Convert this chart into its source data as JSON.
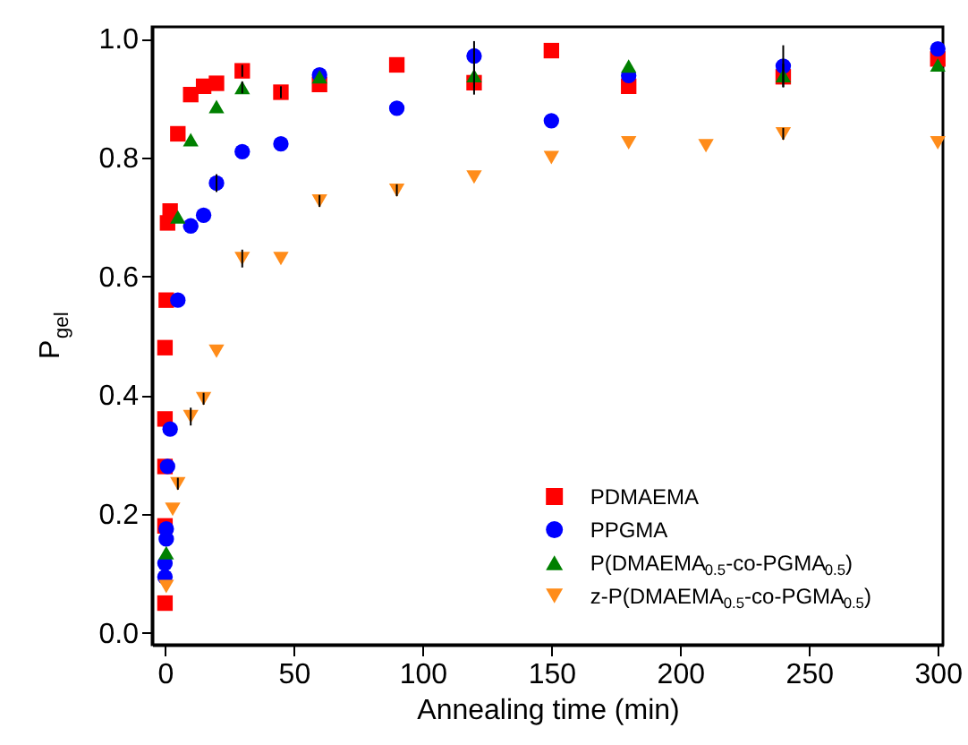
{
  "chart_data": {
    "type": "scatter",
    "xlabel": "Annealing time   (min)",
    "ylabel": "P$_{gel}$",
    "xlim": [
      -5,
      302
    ],
    "ylim": [
      -0.02,
      1.02
    ],
    "xticks": [
      0,
      50,
      100,
      150,
      200,
      250,
      300
    ],
    "yticks": [
      {
        "value": 0,
        "label": "0.0"
      },
      0.2,
      0.4,
      0.6,
      0.8,
      {
        "value": 1,
        "label": "1.0"
      }
    ],
    "legend": "bottom right",
    "grid": false,
    "series": [
      {
        "name": "PDMAEMA",
        "color": "#ff0000",
        "marker": "square",
        "x": [
          0,
          0,
          0,
          0,
          0,
          0.5,
          1,
          2,
          5,
          10,
          15,
          20,
          30,
          45,
          60,
          90,
          120,
          150,
          180,
          240,
          300
        ],
        "values": [
          0.05,
          0.18,
          0.28,
          0.36,
          0.48,
          0.56,
          0.69,
          0.71,
          0.84,
          0.906,
          0.92,
          0.925,
          0.946,
          0.91,
          0.923,
          0.956,
          0.926,
          0.98,
          0.92,
          0.936,
          0.966
        ],
        "errors": [
          null,
          null,
          null,
          null,
          null,
          null,
          null,
          null,
          null,
          null,
          null,
          null,
          0.01,
          0.01,
          null,
          null,
          0.02,
          null,
          null,
          null,
          null
        ]
      },
      {
        "name": "PPGMA",
        "color": "#0000ff",
        "marker": "circle",
        "x": [
          0,
          0,
          0.5,
          0.5,
          1,
          2,
          5,
          10,
          15,
          20,
          30,
          45,
          60,
          90,
          120,
          150,
          180,
          240,
          300
        ],
        "values": [
          0.094,
          0.117,
          0.158,
          0.175,
          0.28,
          0.343,
          0.56,
          0.685,
          0.703,
          0.757,
          0.81,
          0.823,
          0.939,
          0.883,
          0.971,
          0.862,
          0.938,
          0.954,
          0.983
        ],
        "errors": [
          null,
          null,
          null,
          null,
          null,
          null,
          null,
          null,
          null,
          0.015,
          null,
          null,
          null,
          null,
          0.025,
          null,
          null,
          0.035,
          null
        ]
      },
      {
        "name": "P(DMAEMA$_{0.5}$-co-PGMA$_{0.5}$)",
        "color": "#008000",
        "marker": "triangle-up",
        "x": [
          0.5,
          5,
          10,
          20,
          30,
          60,
          120,
          180,
          240,
          300
        ],
        "values": [
          0.135,
          0.7,
          0.83,
          0.886,
          0.918,
          0.936,
          0.938,
          0.954,
          0.938,
          0.956
        ],
        "errors": [
          null,
          null,
          null,
          null,
          0.01,
          null,
          0.02,
          null,
          0.02,
          null
        ]
      },
      {
        "name": "z-P(DMAEMA$_{0.5}$-co-PGMA$_{0.5}$)",
        "color": "#ff8c1a",
        "marker": "triangle-down",
        "x": [
          0.5,
          3,
          5,
          10,
          15,
          20,
          30,
          45,
          60,
          90,
          120,
          150,
          180,
          210,
          240,
          300
        ],
        "values": [
          0.078,
          0.208,
          0.251,
          0.364,
          0.394,
          0.474,
          0.63,
          0.63,
          0.727,
          0.745,
          0.767,
          0.8,
          0.825,
          0.82,
          0.84,
          0.825
        ],
        "errors": [
          null,
          null,
          0.01,
          0.015,
          0.01,
          null,
          0.015,
          null,
          0.01,
          0.01,
          null,
          null,
          null,
          null,
          0.01,
          null
        ]
      }
    ]
  }
}
